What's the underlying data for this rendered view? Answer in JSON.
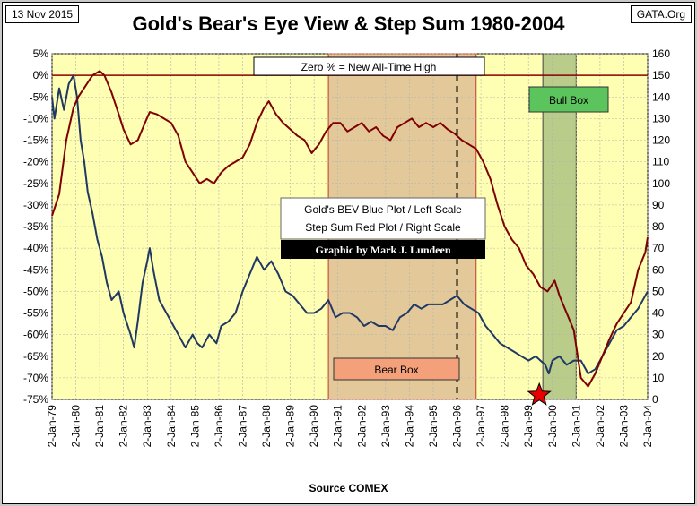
{
  "header": {
    "date": "13 Nov 2015",
    "site": "GATA.Org",
    "title": "Gold's Bear's Eye View & Step Sum 1980-2004"
  },
  "footer": {
    "source": "Source COMEX"
  },
  "annotations": {
    "zero_note": "Zero % = New All-Time High",
    "bull_box": "Bull Box",
    "bear_box": "Bear Box",
    "legend_line1": "Gold's BEV Blue Plot / Left Scale",
    "legend_line2": "Step Sum Red Plot / Right Scale",
    "credit": "Graphic by Mark J. Lundeen"
  },
  "colors": {
    "plot_bg": "#ffffb3",
    "bev_line": "#1f3864",
    "step_sum_line": "#7f0000",
    "bear_box_fill": "#e3c99a",
    "bull_box_fill": "#b9cc8a",
    "bull_label": "#5cc45c",
    "bear_label": "#f4a07a",
    "star": "#e60000"
  },
  "chart_data": {
    "type": "line",
    "x_tick_labels": [
      "2-Jan-79",
      "2-Jan-80",
      "2-Jan-81",
      "2-Jan-82",
      "2-Jan-83",
      "2-Jan-84",
      "2-Jan-85",
      "2-Jan-86",
      "2-Jan-87",
      "2-Jan-88",
      "2-Jan-89",
      "2-Jan-90",
      "2-Jan-91",
      "2-Jan-92",
      "2-Jan-93",
      "2-Jan-94",
      "2-Jan-95",
      "2-Jan-96",
      "2-Jan-97",
      "2-Jan-98",
      "2-Jan-99",
      "2-Jan-00",
      "2-Jan-01",
      "2-Jan-02",
      "2-Jan-03",
      "2-Jan-04"
    ],
    "x_range": [
      1979,
      2004
    ],
    "left_axis": {
      "ylim": [
        -75,
        5
      ],
      "ticks": [
        5,
        0,
        -5,
        -10,
        -15,
        -20,
        -25,
        -30,
        -35,
        -40,
        -45,
        -50,
        -55,
        -60,
        -65,
        -70,
        -75
      ],
      "format": "%"
    },
    "right_axis": {
      "ylim": [
        0,
        160
      ],
      "ticks": [
        160,
        150,
        140,
        130,
        120,
        110,
        100,
        90,
        80,
        70,
        60,
        50,
        40,
        30,
        20,
        10,
        0
      ]
    },
    "bear_box_years": [
      1990.6,
      1996.8
    ],
    "bull_box_years": [
      1999.6,
      2001.0
    ],
    "dashed_line_year": 1996.0,
    "star_point": {
      "year": 1999.45,
      "value": -74
    },
    "series": [
      {
        "axis": "left",
        "x": [
          1979.0,
          1979.1,
          1979.3,
          1979.5,
          1979.7,
          1979.9,
          1980.05,
          1980.2,
          1980.35,
          1980.5,
          1980.7,
          1980.9,
          1981.1,
          1981.3,
          1981.5,
          1981.8,
          1982.0,
          1982.3,
          1982.45,
          1982.6,
          1982.8,
          1983.0,
          1983.1,
          1983.25,
          1983.5,
          1983.8,
          1984.0,
          1984.3,
          1984.6,
          1984.9,
          1985.1,
          1985.3,
          1985.6,
          1985.9,
          1986.1,
          1986.4,
          1986.7,
          1987.0,
          1987.3,
          1987.6,
          1987.9,
          1988.2,
          1988.5,
          1988.8,
          1989.1,
          1989.4,
          1989.7,
          1990.0,
          1990.3,
          1990.6,
          1990.9,
          1991.2,
          1991.5,
          1991.8,
          1992.1,
          1992.4,
          1992.7,
          1993.0,
          1993.3,
          1993.6,
          1993.9,
          1994.2,
          1994.5,
          1994.8,
          1995.1,
          1995.4,
          1995.7,
          1996.0,
          1996.3,
          1996.6,
          1996.9,
          1997.2,
          1997.5,
          1997.8,
          1998.1,
          1998.4,
          1998.7,
          1999.0,
          1999.3,
          1999.5,
          1999.7,
          1999.85,
          2000.0,
          2000.3,
          2000.6,
          2000.9,
          2001.2,
          2001.5,
          2001.8,
          2002.1,
          2002.4,
          2002.7,
          2003.0,
          2003.3,
          2003.6,
          2003.9,
          2004.0
        ],
        "y": [
          -5,
          -10,
          -3,
          -8,
          -2,
          0,
          -5,
          -15,
          -20,
          -27,
          -32,
          -38,
          -42,
          -48,
          -52,
          -50,
          -55,
          -60,
          -63,
          -57,
          -48,
          -43,
          -40,
          -45,
          -52,
          -55,
          -57,
          -60,
          -63,
          -60,
          -62,
          -63,
          -60,
          -62,
          -58,
          -57,
          -55,
          -50,
          -46,
          -42,
          -45,
          -43,
          -46,
          -50,
          -51,
          -53,
          -55,
          -55,
          -54,
          -52,
          -56,
          -55,
          -55,
          -56,
          -58,
          -57,
          -58,
          -58,
          -59,
          -56,
          -55,
          -53,
          -54,
          -53,
          -53,
          -53,
          -52,
          -51,
          -53,
          -54,
          -55,
          -58,
          -60,
          -62,
          -63,
          -64,
          -65,
          -66,
          -65,
          -66,
          -67,
          -69,
          -66,
          -65,
          -67,
          -66,
          -66,
          -69,
          -68,
          -65,
          -62,
          -59,
          -58,
          -56,
          -54,
          -51,
          -50
        ]
      },
      {
        "axis": "right",
        "x": [
          1979.0,
          1979.3,
          1979.6,
          1979.9,
          1980.1,
          1980.4,
          1980.7,
          1981.0,
          1981.2,
          1981.5,
          1981.8,
          1982.0,
          1982.3,
          1982.6,
          1982.9,
          1983.1,
          1983.4,
          1983.7,
          1984.0,
          1984.3,
          1984.6,
          1984.9,
          1985.2,
          1985.5,
          1985.8,
          1986.1,
          1986.4,
          1986.7,
          1987.0,
          1987.3,
          1987.6,
          1987.9,
          1988.1,
          1988.4,
          1988.7,
          1989.0,
          1989.3,
          1989.6,
          1989.9,
          1990.2,
          1990.5,
          1990.8,
          1991.1,
          1991.4,
          1991.7,
          1992.0,
          1992.3,
          1992.6,
          1992.9,
          1993.2,
          1993.5,
          1993.8,
          1994.1,
          1994.4,
          1994.7,
          1995.0,
          1995.3,
          1995.6,
          1995.9,
          1996.2,
          1996.5,
          1996.8,
          1997.1,
          1997.4,
          1997.7,
          1998.0,
          1998.3,
          1998.6,
          1998.9,
          1999.2,
          1999.5,
          1999.8,
          2000.1,
          2000.3,
          2000.6,
          2000.9,
          2001.2,
          2001.5,
          2001.8,
          2002.1,
          2002.4,
          2002.7,
          2003.0,
          2003.3,
          2003.6,
          2003.9,
          2004.0
        ],
        "y": [
          85,
          95,
          120,
          135,
          140,
          145,
          150,
          152,
          150,
          142,
          132,
          125,
          118,
          120,
          128,
          133,
          132,
          130,
          128,
          122,
          110,
          105,
          100,
          102,
          100,
          105,
          108,
          110,
          112,
          118,
          128,
          135,
          138,
          132,
          128,
          125,
          122,
          120,
          114,
          118,
          124,
          128,
          128,
          124,
          126,
          128,
          124,
          126,
          122,
          120,
          126,
          128,
          130,
          126,
          128,
          126,
          128,
          125,
          123,
          120,
          118,
          116,
          110,
          102,
          90,
          80,
          74,
          70,
          62,
          58,
          52,
          50,
          55,
          48,
          40,
          32,
          10,
          6,
          12,
          20,
          28,
          35,
          40,
          45,
          60,
          68,
          75
        ]
      }
    ]
  }
}
